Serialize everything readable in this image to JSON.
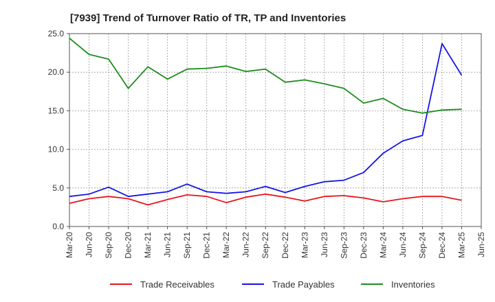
{
  "chart_data": {
    "type": "line",
    "title": "[7939]  Trend of Turnover Ratio of TR, TP and Inventories",
    "xlabel": "",
    "ylabel": "",
    "ylim": [
      0,
      25
    ],
    "yticks": [
      "0.0",
      "5.0",
      "10.0",
      "15.0",
      "20.0",
      "25.0"
    ],
    "x_tick_labels": [
      "Mar-20",
      "Jun-20",
      "Sep-20",
      "Dec-20",
      "Mar-21",
      "Jun-21",
      "Sep-21",
      "Dec-21",
      "Mar-22",
      "Jun-22",
      "Sep-22",
      "Dec-22",
      "Mar-23",
      "Jun-23",
      "Sep-23",
      "Dec-23",
      "Mar-24",
      "Jun-24",
      "Sep-24",
      "Dec-24",
      "Mar-25",
      "Jun-25"
    ],
    "grid": true,
    "legend_position": "bottom",
    "x": [
      "Mar-20",
      "Jun-20",
      "Sep-20",
      "Dec-20",
      "Mar-21",
      "Jun-21",
      "Sep-21",
      "Dec-21",
      "Mar-22",
      "Jun-22",
      "Sep-22",
      "Dec-22",
      "Mar-23",
      "Jun-23",
      "Sep-23",
      "Dec-23",
      "Mar-24",
      "Jun-24",
      "Sep-24",
      "Dec-24",
      "Mar-25"
    ],
    "series": [
      {
        "name": "Trade Receivables",
        "color": "#e8141b",
        "values": [
          3.0,
          3.6,
          3.9,
          3.6,
          2.8,
          3.5,
          4.1,
          3.9,
          3.1,
          3.8,
          4.2,
          3.8,
          3.3,
          3.9,
          4.0,
          3.7,
          3.2,
          3.6,
          3.9,
          3.9,
          3.4
        ]
      },
      {
        "name": "Trade Payables",
        "color": "#1414e6",
        "values": [
          3.9,
          4.2,
          5.1,
          3.9,
          4.2,
          4.5,
          5.5,
          4.5,
          4.3,
          4.5,
          5.2,
          4.4,
          5.2,
          5.8,
          6.0,
          7.0,
          9.5,
          11.1,
          11.8,
          23.7,
          19.6
        ]
      },
      {
        "name": "Inventories",
        "color": "#1c8c1c",
        "values": [
          24.4,
          22.3,
          21.7,
          17.9,
          20.7,
          19.1,
          20.4,
          20.5,
          20.8,
          20.1,
          20.4,
          18.7,
          19.0,
          18.5,
          17.9,
          16.0,
          16.6,
          15.2,
          14.7,
          15.1,
          15.2
        ]
      }
    ]
  }
}
